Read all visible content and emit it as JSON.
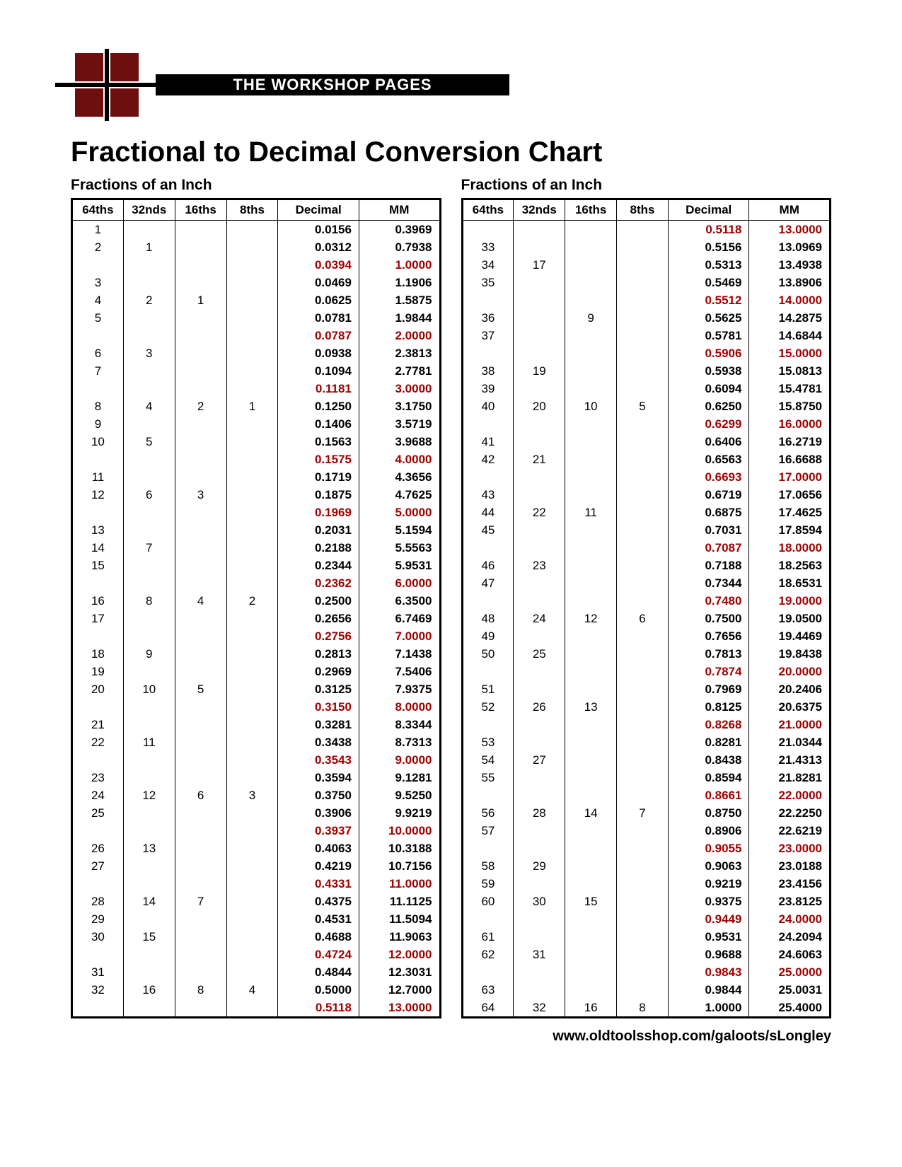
{
  "banner_label": "THE WORKSHOP PAGES",
  "title": "Fractional to Decimal Conversion Chart",
  "subhead": "Fractions of an Inch",
  "footer": "www.oldtoolsshop.com/galoots/sLongley",
  "headers": [
    "64ths",
    "32nds",
    "16ths",
    "8ths",
    "Decimal",
    "MM"
  ],
  "colors": {
    "highlight": "#a00000",
    "square": "#6e0f0f"
  },
  "left_rows": [
    {
      "c": [
        "1",
        "",
        "",
        "",
        "0.0156",
        "0.3969"
      ],
      "hl": false
    },
    {
      "c": [
        "2",
        "1",
        "",
        "",
        "0.0312",
        "0.7938"
      ],
      "hl": false
    },
    {
      "c": [
        "",
        "",
        "",
        "",
        "0.0394",
        "1.0000"
      ],
      "hl": true
    },
    {
      "c": [
        "3",
        "",
        "",
        "",
        "0.0469",
        "1.1906"
      ],
      "hl": false
    },
    {
      "c": [
        "4",
        "2",
        "1",
        "",
        "0.0625",
        "1.5875"
      ],
      "hl": false
    },
    {
      "c": [
        "5",
        "",
        "",
        "",
        "0.0781",
        "1.9844"
      ],
      "hl": false
    },
    {
      "c": [
        "",
        "",
        "",
        "",
        "0.0787",
        "2.0000"
      ],
      "hl": true
    },
    {
      "c": [
        "6",
        "3",
        "",
        "",
        "0.0938",
        "2.3813"
      ],
      "hl": false
    },
    {
      "c": [
        "7",
        "",
        "",
        "",
        "0.1094",
        "2.7781"
      ],
      "hl": false
    },
    {
      "c": [
        "",
        "",
        "",
        "",
        "0.1181",
        "3.0000"
      ],
      "hl": true
    },
    {
      "c": [
        "8",
        "4",
        "2",
        "1",
        "0.1250",
        "3.1750"
      ],
      "hl": false
    },
    {
      "c": [
        "9",
        "",
        "",
        "",
        "0.1406",
        "3.5719"
      ],
      "hl": false
    },
    {
      "c": [
        "10",
        "5",
        "",
        "",
        "0.1563",
        "3.9688"
      ],
      "hl": false
    },
    {
      "c": [
        "",
        "",
        "",
        "",
        "0.1575",
        "4.0000"
      ],
      "hl": true
    },
    {
      "c": [
        "11",
        "",
        "",
        "",
        "0.1719",
        "4.3656"
      ],
      "hl": false
    },
    {
      "c": [
        "12",
        "6",
        "3",
        "",
        "0.1875",
        "4.7625"
      ],
      "hl": false
    },
    {
      "c": [
        "",
        "",
        "",
        "",
        "0.1969",
        "5.0000"
      ],
      "hl": true
    },
    {
      "c": [
        "13",
        "",
        "",
        "",
        "0.2031",
        "5.1594"
      ],
      "hl": false
    },
    {
      "c": [
        "14",
        "7",
        "",
        "",
        "0.2188",
        "5.5563"
      ],
      "hl": false
    },
    {
      "c": [
        "15",
        "",
        "",
        "",
        "0.2344",
        "5.9531"
      ],
      "hl": false
    },
    {
      "c": [
        "",
        "",
        "",
        "",
        "0.2362",
        "6.0000"
      ],
      "hl": true
    },
    {
      "c": [
        "16",
        "8",
        "4",
        "2",
        "0.2500",
        "6.3500"
      ],
      "hl": false
    },
    {
      "c": [
        "17",
        "",
        "",
        "",
        "0.2656",
        "6.7469"
      ],
      "hl": false
    },
    {
      "c": [
        "",
        "",
        "",
        "",
        "0.2756",
        "7.0000"
      ],
      "hl": true
    },
    {
      "c": [
        "18",
        "9",
        "",
        "",
        "0.2813",
        "7.1438"
      ],
      "hl": false
    },
    {
      "c": [
        "19",
        "",
        "",
        "",
        "0.2969",
        "7.5406"
      ],
      "hl": false
    },
    {
      "c": [
        "20",
        "10",
        "5",
        "",
        "0.3125",
        "7.9375"
      ],
      "hl": false
    },
    {
      "c": [
        "",
        "",
        "",
        "",
        "0.3150",
        "8.0000"
      ],
      "hl": true
    },
    {
      "c": [
        "21",
        "",
        "",
        "",
        "0.3281",
        "8.3344"
      ],
      "hl": false
    },
    {
      "c": [
        "22",
        "11",
        "",
        "",
        "0.3438",
        "8.7313"
      ],
      "hl": false
    },
    {
      "c": [
        "",
        "",
        "",
        "",
        "0.3543",
        "9.0000"
      ],
      "hl": true
    },
    {
      "c": [
        "23",
        "",
        "",
        "",
        "0.3594",
        "9.1281"
      ],
      "hl": false
    },
    {
      "c": [
        "24",
        "12",
        "6",
        "3",
        "0.3750",
        "9.5250"
      ],
      "hl": false
    },
    {
      "c": [
        "25",
        "",
        "",
        "",
        "0.3906",
        "9.9219"
      ],
      "hl": false
    },
    {
      "c": [
        "",
        "",
        "",
        "",
        "0.3937",
        "10.0000"
      ],
      "hl": true
    },
    {
      "c": [
        "26",
        "13",
        "",
        "",
        "0.4063",
        "10.3188"
      ],
      "hl": false
    },
    {
      "c": [
        "27",
        "",
        "",
        "",
        "0.4219",
        "10.7156"
      ],
      "hl": false
    },
    {
      "c": [
        "",
        "",
        "",
        "",
        "0.4331",
        "11.0000"
      ],
      "hl": true
    },
    {
      "c": [
        "28",
        "14",
        "7",
        "",
        "0.4375",
        "11.1125"
      ],
      "hl": false
    },
    {
      "c": [
        "29",
        "",
        "",
        "",
        "0.4531",
        "11.5094"
      ],
      "hl": false
    },
    {
      "c": [
        "30",
        "15",
        "",
        "",
        "0.4688",
        "11.9063"
      ],
      "hl": false
    },
    {
      "c": [
        "",
        "",
        "",
        "",
        "0.4724",
        "12.0000"
      ],
      "hl": true
    },
    {
      "c": [
        "31",
        "",
        "",
        "",
        "0.4844",
        "12.3031"
      ],
      "hl": false
    },
    {
      "c": [
        "32",
        "16",
        "8",
        "4",
        "0.5000",
        "12.7000"
      ],
      "hl": false
    },
    {
      "c": [
        "",
        "",
        "",
        "",
        "0.5118",
        "13.0000"
      ],
      "hl": true
    }
  ],
  "right_rows": [
    {
      "c": [
        "",
        "",
        "",
        "",
        "0.5118",
        "13.0000"
      ],
      "hl": true
    },
    {
      "c": [
        "33",
        "",
        "",
        "",
        "0.5156",
        "13.0969"
      ],
      "hl": false
    },
    {
      "c": [
        "34",
        "17",
        "",
        "",
        "0.5313",
        "13.4938"
      ],
      "hl": false
    },
    {
      "c": [
        "35",
        "",
        "",
        "",
        "0.5469",
        "13.8906"
      ],
      "hl": false
    },
    {
      "c": [
        "",
        "",
        "",
        "",
        "0.5512",
        "14.0000"
      ],
      "hl": true
    },
    {
      "c": [
        "36",
        "",
        "9",
        "",
        "0.5625",
        "14.2875"
      ],
      "hl": false
    },
    {
      "c": [
        "37",
        "",
        "",
        "",
        "0.5781",
        "14.6844"
      ],
      "hl": false
    },
    {
      "c": [
        "",
        "",
        "",
        "",
        "0.5906",
        "15.0000"
      ],
      "hl": true
    },
    {
      "c": [
        "38",
        "19",
        "",
        "",
        "0.5938",
        "15.0813"
      ],
      "hl": false
    },
    {
      "c": [
        "39",
        "",
        "",
        "",
        "0.6094",
        "15.4781"
      ],
      "hl": false
    },
    {
      "c": [
        "40",
        "20",
        "10",
        "5",
        "0.6250",
        "15.8750"
      ],
      "hl": false
    },
    {
      "c": [
        "",
        "",
        "",
        "",
        "0.6299",
        "16.0000"
      ],
      "hl": true
    },
    {
      "c": [
        "41",
        "",
        "",
        "",
        "0.6406",
        "16.2719"
      ],
      "hl": false
    },
    {
      "c": [
        "42",
        "21",
        "",
        "",
        "0.6563",
        "16.6688"
      ],
      "hl": false
    },
    {
      "c": [
        "",
        "",
        "",
        "",
        "0.6693",
        "17.0000"
      ],
      "hl": true
    },
    {
      "c": [
        "43",
        "",
        "",
        "",
        "0.6719",
        "17.0656"
      ],
      "hl": false
    },
    {
      "c": [
        "44",
        "22",
        "11",
        "",
        "0.6875",
        "17.4625"
      ],
      "hl": false
    },
    {
      "c": [
        "45",
        "",
        "",
        "",
        "0.7031",
        "17.8594"
      ],
      "hl": false
    },
    {
      "c": [
        "",
        "",
        "",
        "",
        "0.7087",
        "18.0000"
      ],
      "hl": true
    },
    {
      "c": [
        "46",
        "23",
        "",
        "",
        "0.7188",
        "18.2563"
      ],
      "hl": false
    },
    {
      "c": [
        "47",
        "",
        "",
        "",
        "0.7344",
        "18.6531"
      ],
      "hl": false
    },
    {
      "c": [
        "",
        "",
        "",
        "",
        "0.7480",
        "19.0000"
      ],
      "hl": true
    },
    {
      "c": [
        "48",
        "24",
        "12",
        "6",
        "0.7500",
        "19.0500"
      ],
      "hl": false
    },
    {
      "c": [
        "49",
        "",
        "",
        "",
        "0.7656",
        "19.4469"
      ],
      "hl": false
    },
    {
      "c": [
        "50",
        "25",
        "",
        "",
        "0.7813",
        "19.8438"
      ],
      "hl": false
    },
    {
      "c": [
        "",
        "",
        "",
        "",
        "0.7874",
        "20.0000"
      ],
      "hl": true
    },
    {
      "c": [
        "51",
        "",
        "",
        "",
        "0.7969",
        "20.2406"
      ],
      "hl": false
    },
    {
      "c": [
        "52",
        "26",
        "13",
        "",
        "0.8125",
        "20.6375"
      ],
      "hl": false
    },
    {
      "c": [
        "",
        "",
        "",
        "",
        "0.8268",
        "21.0000"
      ],
      "hl": true
    },
    {
      "c": [
        "53",
        "",
        "",
        "",
        "0.8281",
        "21.0344"
      ],
      "hl": false
    },
    {
      "c": [
        "54",
        "27",
        "",
        "",
        "0.8438",
        "21.4313"
      ],
      "hl": false
    },
    {
      "c": [
        "55",
        "",
        "",
        "",
        "0.8594",
        "21.8281"
      ],
      "hl": false
    },
    {
      "c": [
        "",
        "",
        "",
        "",
        "0.8661",
        "22.0000"
      ],
      "hl": true
    },
    {
      "c": [
        "56",
        "28",
        "14",
        "7",
        "0.8750",
        "22.2250"
      ],
      "hl": false
    },
    {
      "c": [
        "57",
        "",
        "",
        "",
        "0.8906",
        "22.6219"
      ],
      "hl": false
    },
    {
      "c": [
        "",
        "",
        "",
        "",
        "0.9055",
        "23.0000"
      ],
      "hl": true
    },
    {
      "c": [
        "58",
        "29",
        "",
        "",
        "0.9063",
        "23.0188"
      ],
      "hl": false
    },
    {
      "c": [
        "59",
        "",
        "",
        "",
        "0.9219",
        "23.4156"
      ],
      "hl": false
    },
    {
      "c": [
        "60",
        "30",
        "15",
        "",
        "0.9375",
        "23.8125"
      ],
      "hl": false
    },
    {
      "c": [
        "",
        "",
        "",
        "",
        "0.9449",
        "24.0000"
      ],
      "hl": true
    },
    {
      "c": [
        "61",
        "",
        "",
        "",
        "0.9531",
        "24.2094"
      ],
      "hl": false
    },
    {
      "c": [
        "62",
        "31",
        "",
        "",
        "0.9688",
        "24.6063"
      ],
      "hl": false
    },
    {
      "c": [
        "",
        "",
        "",
        "",
        "0.9843",
        "25.0000"
      ],
      "hl": true
    },
    {
      "c": [
        "63",
        "",
        "",
        "",
        "0.9844",
        "25.0031"
      ],
      "hl": false
    },
    {
      "c": [
        "64",
        "32",
        "16",
        "8",
        "1.0000",
        "25.4000"
      ],
      "hl": false
    }
  ]
}
